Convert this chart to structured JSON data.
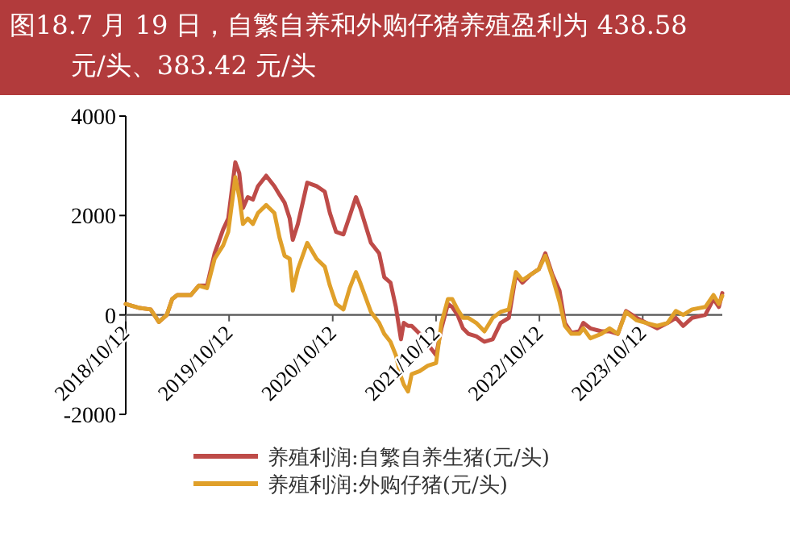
{
  "chart_data": {
    "type": "line",
    "title": "图18.7 月 19 日，自繁自养和外购仔猪养殖盈利为 438.58 元/头、383.42 元/头",
    "x": [
      "2018-10-12",
      "2018-11-30",
      "2019-01-08",
      "2019-02-06",
      "2019-03-06",
      "2019-03-25",
      "2019-04-12",
      "2019-05-30",
      "2019-06-27",
      "2019-07-26",
      "2019-08-22",
      "2019-09-21",
      "2019-10-09",
      "2019-11-03",
      "2019-11-17",
      "2019-11-30",
      "2019-12-17",
      "2020-01-04",
      "2020-01-22",
      "2020-02-20",
      "2020-03-20",
      "2020-04-07",
      "2020-04-25",
      "2020-05-13",
      "2020-05-24",
      "2020-06-11",
      "2020-07-14",
      "2020-08-16",
      "2020-09-14",
      "2020-10-02",
      "2020-10-24",
      "2020-11-19",
      "2020-12-11",
      "2021-01-02",
      "2021-01-17",
      "2021-02-24",
      "2021-03-25",
      "2021-04-12",
      "2021-05-04",
      "2021-05-23",
      "2021-06-10",
      "2021-06-20",
      "2021-07-05",
      "2021-07-18",
      "2021-08-15",
      "2021-09-13",
      "2021-10-12",
      "2021-10-31",
      "2021-11-23",
      "2021-12-08",
      "2021-12-27",
      "2022-01-15",
      "2022-02-03",
      "2022-03-03",
      "2022-04-01",
      "2022-04-30",
      "2022-05-28",
      "2022-06-26",
      "2022-07-21",
      "2022-08-13",
      "2022-09-11",
      "2022-10-10",
      "2022-11-02",
      "2022-11-27",
      "2022-12-22",
      "2023-01-10",
      "2023-02-02",
      "2023-03-02",
      "2023-03-16",
      "2023-04-10",
      "2023-05-19",
      "2023-06-17",
      "2023-07-16",
      "2023-08-14",
      "2023-09-21",
      "2023-10-24",
      "2023-12-02",
      "2024-01-08",
      "2024-02-06",
      "2024-03-03",
      "2024-04-03",
      "2024-05-20",
      "2024-06-18",
      "2024-07-07",
      "2024-07-19"
    ],
    "series": [
      {
        "name": "养殖利润:自繁自养生猪(元/头)",
        "color": "#be4b48",
        "values": [
          220,
          140,
          110,
          -140,
          0,
          320,
          400,
          400,
          590,
          590,
          1240,
          1720,
          1940,
          3070,
          2850,
          2150,
          2370,
          2320,
          2590,
          2800,
          2590,
          2420,
          2260,
          1940,
          1510,
          1830,
          2660,
          2590,
          2480,
          2050,
          1670,
          1620,
          1990,
          2370,
          2150,
          1450,
          1240,
          760,
          650,
          160,
          -490,
          -160,
          -220,
          -220,
          -380,
          -590,
          -810,
          -270,
          220,
          160,
          0,
          -270,
          -380,
          -430,
          -540,
          -490,
          -160,
          -60,
          810,
          650,
          810,
          920,
          1240,
          810,
          490,
          -160,
          -360,
          -330,
          -160,
          -270,
          -330,
          -330,
          -380,
          80,
          -60,
          -160,
          -270,
          -160,
          -60,
          -220,
          -60,
          0,
          320,
          160,
          438.58
        ]
      },
      {
        "name": "养殖利润:外购仔猪(元/头)",
        "color": "#e0a02a",
        "values": [
          220,
          140,
          110,
          -140,
          0,
          320,
          400,
          400,
          590,
          540,
          1130,
          1400,
          1670,
          2770,
          2370,
          1830,
          1940,
          1830,
          2050,
          2210,
          2050,
          1560,
          1190,
          1130,
          490,
          920,
          1450,
          1130,
          970,
          590,
          220,
          110,
          540,
          860,
          650,
          60,
          -160,
          -380,
          -540,
          -810,
          -1240,
          -1400,
          -1540,
          -1190,
          -1130,
          -1020,
          -970,
          -160,
          320,
          320,
          110,
          -60,
          -60,
          -160,
          -330,
          -60,
          60,
          110,
          860,
          700,
          810,
          920,
          1190,
          760,
          270,
          -220,
          -380,
          -380,
          -270,
          -470,
          -380,
          -270,
          -380,
          60,
          -110,
          -160,
          -220,
          -160,
          80,
          0,
          110,
          160,
          400,
          220,
          383.42
        ]
      }
    ],
    "xlim": [
      "2018-10-12",
      "2024-07-19"
    ],
    "xticks": [
      {
        "value": "2018-10-12",
        "label": "2018/10/12"
      },
      {
        "value": "2019-10-12",
        "label": "2019/10/12"
      },
      {
        "value": "2020-10-12",
        "label": "2020/10/12"
      },
      {
        "value": "2021-10-12",
        "label": "2021/10/12"
      },
      {
        "value": "2022-10-12",
        "label": "2022/10/12"
      },
      {
        "value": "2023-10-12",
        "label": "2023/10/12"
      }
    ],
    "ylim": [
      -2000,
      4000
    ],
    "yticks": [
      -2000,
      0,
      2000,
      4000
    ],
    "legend": "bottom",
    "grid": false
  }
}
